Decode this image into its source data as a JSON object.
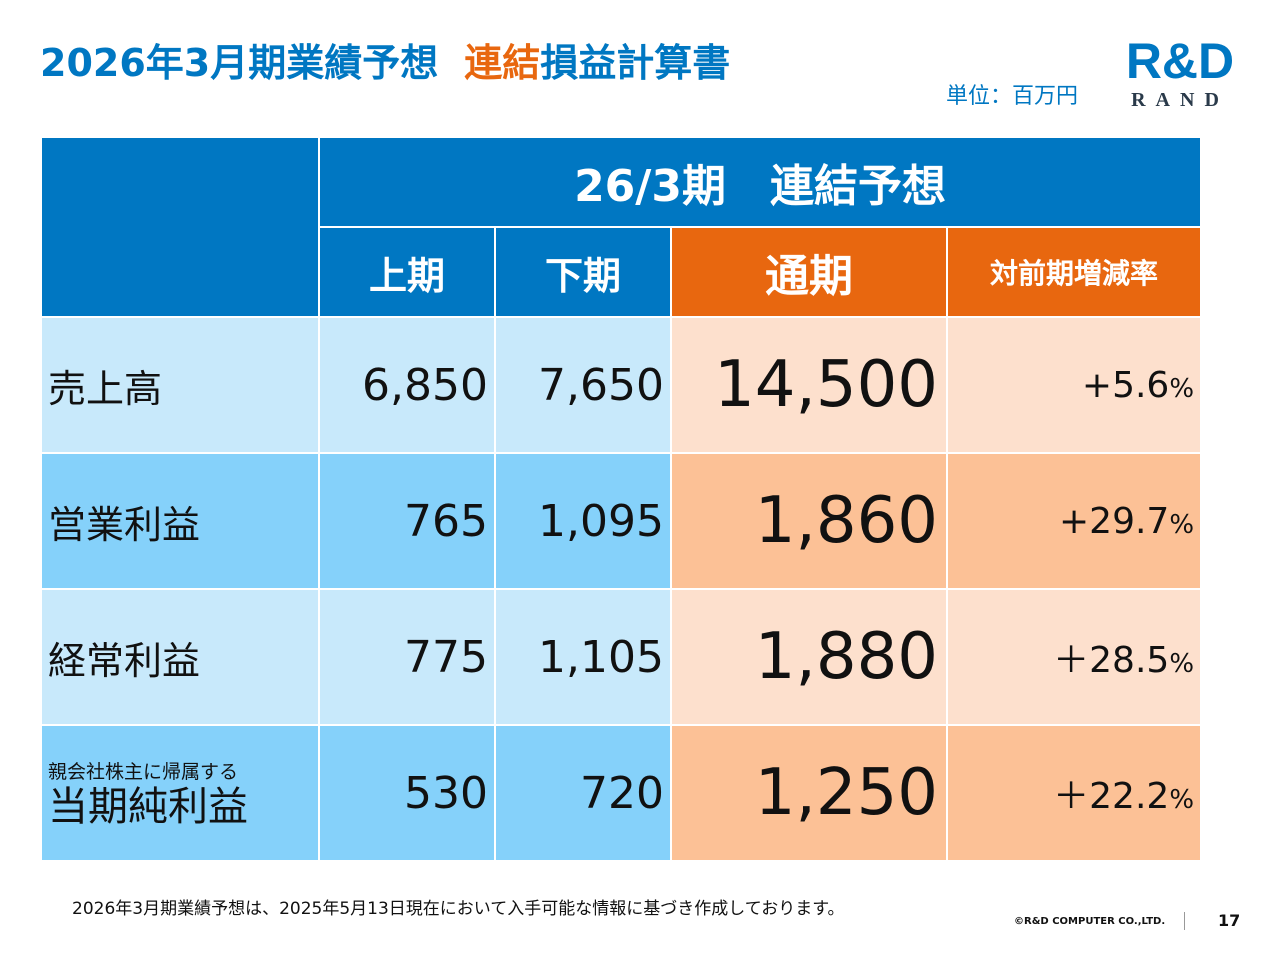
{
  "header": {
    "title_part1": "2026年3月期業績予想",
    "title_part2_orange": "連結",
    "title_part3": "損益計算書",
    "unit": "単位：百万円"
  },
  "logo": {
    "mark": "R&D",
    "word": "RAND",
    "colors": {
      "blue": "#0077c2",
      "orange": "#e8670f"
    }
  },
  "table": {
    "group_header": "26/3期　連結予想",
    "columns": [
      "上期",
      "下期",
      "通期",
      "対前期増減率"
    ],
    "rows": [
      {
        "label": "売上高",
        "label_small": "",
        "h1": "6,850",
        "h2": "7,650",
        "full": "14,500",
        "rate": "+5.6",
        "rate_unit": "%"
      },
      {
        "label": "営業利益",
        "label_small": "",
        "h1": "765",
        "h2": "1,095",
        "full": "1,860",
        "rate": "+29.7",
        "rate_unit": "%"
      },
      {
        "label": "経常利益",
        "label_small": "",
        "h1": "775",
        "h2": "1,105",
        "full": "1,880",
        "rate": "＋28.5",
        "rate_unit": "%"
      },
      {
        "label": "当期純利益",
        "label_small": "親会社株主に帰属する",
        "h1": "530",
        "h2": "720",
        "full": "1,250",
        "rate": "＋22.2",
        "rate_unit": "%"
      }
    ],
    "colors": {
      "header_blue": "#0077c2",
      "header_orange": "#e8670f",
      "light_blue": "#c8e9fb",
      "dark_blue": "#85d1fa",
      "light_orange": "#fde0cd",
      "dark_orange": "#fcc196"
    }
  },
  "footer": {
    "note": "2026年3月期業績予想は、2025年5月13日現在において入手可能な情報に基づき作成しております。",
    "copyright": "©R&D COMPUTER CO.,LTD.",
    "page": "17"
  }
}
